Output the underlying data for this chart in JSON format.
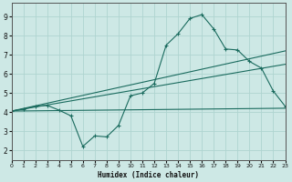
{
  "xlabel": "Humidex (Indice chaleur)",
  "xlim": [
    0,
    23
  ],
  "ylim": [
    1.5,
    9.7
  ],
  "yticks": [
    2,
    3,
    4,
    5,
    6,
    7,
    8,
    9
  ],
  "xticks": [
    0,
    1,
    2,
    3,
    4,
    5,
    6,
    7,
    8,
    9,
    10,
    11,
    12,
    13,
    14,
    15,
    16,
    17,
    18,
    19,
    20,
    21,
    22,
    23
  ],
  "bg_color": "#cde8e5",
  "grid_color": "#afd4d0",
  "line_color": "#1a6b5e",
  "line1_x": [
    0,
    1,
    2,
    3,
    4,
    5,
    6,
    7,
    8,
    9,
    10,
    11,
    12,
    13,
    14,
    15,
    16,
    17,
    18,
    19,
    20,
    21,
    22,
    23
  ],
  "line1_y": [
    4.05,
    4.15,
    4.3,
    4.35,
    4.1,
    3.8,
    2.2,
    2.75,
    2.7,
    3.3,
    4.85,
    5.0,
    5.5,
    7.5,
    8.1,
    8.9,
    9.1,
    8.35,
    7.3,
    7.25,
    6.65,
    6.3,
    5.1,
    4.3
  ],
  "line2_x": [
    0,
    23
  ],
  "line2_y": [
    4.05,
    4.2
  ],
  "line3_x": [
    0,
    23
  ],
  "line3_y": [
    4.05,
    7.2
  ],
  "line4_x": [
    0,
    23
  ],
  "line4_y": [
    4.05,
    6.5
  ]
}
